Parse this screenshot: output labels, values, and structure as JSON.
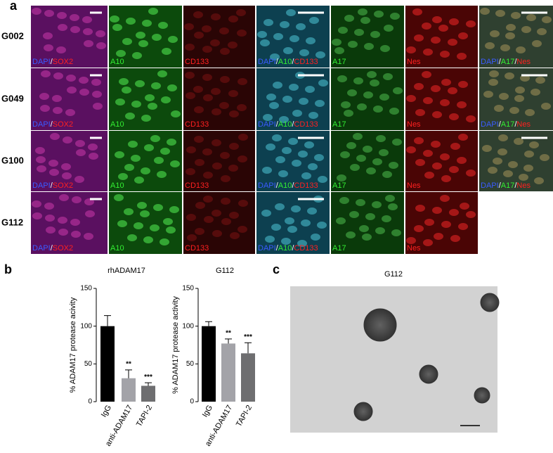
{
  "panel_labels": [
    "a",
    "b",
    "c"
  ],
  "rows": [
    {
      "label": "G002",
      "images": [
        [
          {
            "text": "DAPI",
            "color": "#3a5bff"
          },
          {
            "text": "/",
            "color": "#ffffff"
          },
          {
            "text": "SOX2",
            "color": "#ff2020"
          }
        ],
        [
          {
            "text": "A10",
            "color": "#33ee33"
          }
        ],
        [
          {
            "text": "CD133",
            "color": "#ff2020"
          }
        ],
        [
          {
            "text": "DAPI",
            "color": "#3a5bff"
          },
          {
            "text": "/",
            "color": "#ffffff"
          },
          {
            "text": "A10",
            "color": "#33ee33"
          },
          {
            "text": "/",
            "color": "#ffffff"
          },
          {
            "text": "CD133",
            "color": "#ff2020"
          }
        ],
        [
          {
            "text": "A17",
            "color": "#33ee33"
          }
        ],
        [
          {
            "text": "Nes",
            "color": "#ff2020"
          }
        ],
        [
          {
            "text": "DAPI",
            "color": "#3a5bff"
          },
          {
            "text": "/",
            "color": "#ffffff"
          },
          {
            "text": "A17",
            "color": "#33ee33"
          },
          {
            "text": "/",
            "color": "#ffffff"
          },
          {
            "text": "Nes",
            "color": "#ff2020"
          }
        ]
      ]
    },
    {
      "label": "G049",
      "images": [
        [
          {
            "text": "DAPI",
            "color": "#3a5bff"
          },
          {
            "text": "/",
            "color": "#ffffff"
          },
          {
            "text": "SOX2",
            "color": "#ff2020"
          }
        ],
        [
          {
            "text": "A10",
            "color": "#33ee33"
          }
        ],
        [
          {
            "text": "CD133",
            "color": "#ff2020"
          }
        ],
        [
          {
            "text": "DAPI",
            "color": "#3a5bff"
          },
          {
            "text": "/",
            "color": "#ffffff"
          },
          {
            "text": "A10",
            "color": "#33ee33"
          },
          {
            "text": "/",
            "color": "#ffffff"
          },
          {
            "text": "CD133",
            "color": "#ff2020"
          }
        ],
        [
          {
            "text": "A17",
            "color": "#33ee33"
          }
        ],
        [
          {
            "text": "Nes",
            "color": "#ff2020"
          }
        ],
        [
          {
            "text": "DAPI",
            "color": "#3a5bff"
          },
          {
            "text": "/",
            "color": "#ffffff"
          },
          {
            "text": "A17",
            "color": "#33ee33"
          },
          {
            "text": "/",
            "color": "#ffffff"
          },
          {
            "text": "Nes",
            "color": "#ff2020"
          }
        ]
      ]
    },
    {
      "label": "G100",
      "images": [
        [
          {
            "text": "DAPI",
            "color": "#3a5bff"
          },
          {
            "text": "/",
            "color": "#ffffff"
          },
          {
            "text": "SOX2",
            "color": "#ff2020"
          }
        ],
        [
          {
            "text": "A10",
            "color": "#33ee33"
          }
        ],
        [
          {
            "text": "CD133",
            "color": "#ff2020"
          }
        ],
        [
          {
            "text": "DAPI",
            "color": "#3a5bff"
          },
          {
            "text": "/",
            "color": "#ffffff"
          },
          {
            "text": "A10",
            "color": "#33ee33"
          },
          {
            "text": "/",
            "color": "#ffffff"
          },
          {
            "text": "CD133",
            "color": "#ff2020"
          }
        ],
        [
          {
            "text": "A17",
            "color": "#33ee33"
          }
        ],
        [
          {
            "text": "Nes",
            "color": "#ff2020"
          }
        ],
        [
          {
            "text": "DAPI",
            "color": "#3a5bff"
          },
          {
            "text": "/",
            "color": "#ffffff"
          },
          {
            "text": "A17",
            "color": "#33ee33"
          },
          {
            "text": "/",
            "color": "#ffffff"
          },
          {
            "text": "Nes",
            "color": "#ff2020"
          }
        ]
      ]
    },
    {
      "label": "G112",
      "images": [
        [
          {
            "text": "DAPI",
            "color": "#3a5bff"
          },
          {
            "text": "/",
            "color": "#ffffff"
          },
          {
            "text": "SOX2",
            "color": "#ff2020"
          }
        ],
        [
          {
            "text": "A10",
            "color": "#33ee33"
          }
        ],
        [
          {
            "text": "CD133",
            "color": "#ff2020"
          }
        ],
        [
          {
            "text": "DAPI",
            "color": "#3a5bff"
          },
          {
            "text": "/",
            "color": "#ffffff"
          },
          {
            "text": "A10",
            "color": "#33ee33"
          },
          {
            "text": "/",
            "color": "#ffffff"
          },
          {
            "text": "CD133",
            "color": "#ff2020"
          }
        ],
        [
          {
            "text": "A17",
            "color": "#33ee33"
          }
        ],
        [
          {
            "text": "Nes",
            "color": "#ff2020"
          }
        ]
      ]
    }
  ],
  "chart_data": [
    {
      "type": "bar",
      "title": "rhADAM17",
      "y_label": "% ADAM17 protease acivity",
      "categories": [
        "IgG",
        "anti-ADAM17",
        "TAPI-2"
      ],
      "values": [
        100,
        31,
        21
      ],
      "errors": [
        14,
        11,
        4
      ],
      "colors": [
        "#000000",
        "#a3a3a8",
        "#6e6e70"
      ],
      "annotations": [
        null,
        "**",
        "***"
      ],
      "ylim": [
        0,
        150
      ],
      "yticks": [
        0,
        50,
        100,
        150
      ]
    },
    {
      "type": "bar",
      "title": "G112",
      "y_label": "% ADAM17 protease activity",
      "categories": [
        "IgG",
        "anti-ADAM17",
        "TAPI-2"
      ],
      "values": [
        100,
        77,
        64
      ],
      "errors": [
        6,
        6,
        14
      ],
      "colors": [
        "#000000",
        "#a3a3a8",
        "#6e6e70"
      ],
      "annotations": [
        null,
        "**",
        "***"
      ],
      "ylim": [
        0,
        150
      ],
      "yticks": [
        0,
        50,
        100,
        150
      ]
    }
  ],
  "image_c_title": "G112"
}
